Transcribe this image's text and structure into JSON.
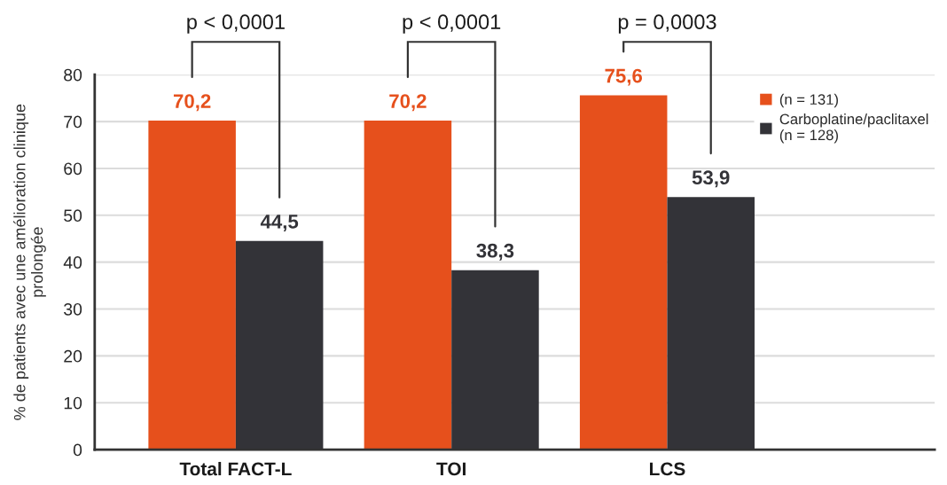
{
  "chart_data": {
    "type": "bar",
    "ylabel": "% de patients avec une amélioration clinique\nprolongée",
    "categories": [
      "Total FACT-L",
      "TOI",
      "LCS"
    ],
    "series": [
      {
        "name": "(n = 131)",
        "color": "#e6501c",
        "values": [
          70.2,
          70.2,
          75.6
        ],
        "value_labels": [
          "70,2",
          "70,2",
          "75,6"
        ]
      },
      {
        "name": "Carboplatine/paclitaxel\n(n = 128)",
        "color": "#333338",
        "values": [
          44.5,
          38.3,
          53.9
        ],
        "value_labels": [
          "44,5",
          "38,3",
          "53,9"
        ]
      }
    ],
    "ylim": [
      0,
      80
    ],
    "yticks": [
      0,
      10,
      20,
      30,
      40,
      50,
      60,
      70,
      80
    ],
    "grid": "y",
    "legend": "top right",
    "annotations": [
      "p < 0,0001",
      "p < 0,0001",
      "p = 0,0003"
    ]
  }
}
